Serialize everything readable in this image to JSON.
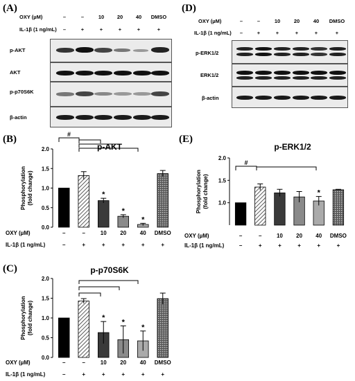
{
  "panels": {
    "A": "(A)",
    "B": "(B)",
    "C": "(C)",
    "D": "(D)",
    "E": "(E)"
  },
  "blots": {
    "A": {
      "row1_label": "OXY (µM)",
      "row2_label": "IL-1β (1 ng/mL)",
      "oxy": [
        "–",
        "–",
        "10",
        "20",
        "40",
        "DMSO"
      ],
      "il": [
        "–",
        "+",
        "+",
        "+",
        "+",
        "+"
      ],
      "bands": [
        "p-AKT",
        "AKT",
        "p-p70S6K",
        "β-actin"
      ]
    },
    "D": {
      "row1_label": "OXY (µM)",
      "row2_label": "IL-1β (1 ng/mL)",
      "oxy": [
        "–",
        "–",
        "10",
        "20",
        "40",
        "DMSO"
      ],
      "il": [
        "–",
        "+",
        "+",
        "+",
        "+",
        "+"
      ],
      "bands": [
        "p-ERK1/2",
        "ERK1/2",
        "β-actin"
      ]
    }
  },
  "chart_data": [
    {
      "id": "B",
      "type": "bar",
      "title": "p-AKT",
      "ylabel": "Phosphorylation\n(fold change)",
      "ylim": [
        0,
        2.0
      ],
      "yticks": [
        "0.0",
        "0.5",
        "1.0",
        "1.5",
        "2.0"
      ],
      "categories": [
        "",
        "",
        "10",
        "20",
        "40",
        "DMSO"
      ],
      "values": [
        1.0,
        1.32,
        0.68,
        0.28,
        0.07,
        1.37
      ],
      "errors": [
        0.0,
        0.1,
        0.06,
        0.04,
        0.03,
        0.08
      ],
      "markers": [
        "",
        "#",
        "*",
        "*",
        "*",
        ""
      ],
      "fills": [
        "black",
        "hatch",
        "#3a3a3a",
        "#8a8a8a",
        "#aaaaaa",
        "crosshatch"
      ],
      "row1_label": "OXY (µM)",
      "row2_label": "IL-1β (1 ng/mL)",
      "oxy": [
        "–",
        "–",
        "10",
        "20",
        "40",
        "DMSO"
      ],
      "il": [
        "–",
        "+",
        "+",
        "+",
        "+",
        "+"
      ]
    },
    {
      "id": "C",
      "type": "bar",
      "title": "p-p70S6K",
      "ylabel": "Phosphorylation\n(fold change)",
      "ylim": [
        0,
        2.0
      ],
      "yticks": [
        "0.0",
        "0.5",
        "1.0",
        "1.5",
        "2.0"
      ],
      "categories": [
        "",
        "",
        "10",
        "20",
        "40",
        "DMSO"
      ],
      "values": [
        1.0,
        1.43,
        0.63,
        0.45,
        0.42,
        1.49
      ],
      "errors": [
        0.0,
        0.06,
        0.28,
        0.35,
        0.25,
        0.14
      ],
      "markers": [
        "",
        "",
        "*",
        "*",
        "*",
        ""
      ],
      "fills": [
        "black",
        "hatch",
        "#3a3a3a",
        "#8a8a8a",
        "#aaaaaa",
        "crosshatch"
      ],
      "row1_label": "OXY (µM)",
      "row2_label": "IL-1β (1 ng/mL)",
      "oxy": [
        "–",
        "–",
        "10",
        "20",
        "40",
        "DMSO"
      ],
      "il": [
        "–",
        "+",
        "+",
        "+",
        "+",
        "+"
      ]
    },
    {
      "id": "E",
      "type": "bar",
      "title": "p-ERK1/2",
      "ylabel": "Phosphorylation\n(fold change)",
      "ylim": [
        0.5,
        2.0
      ],
      "yticks": [
        "1.0",
        "1.5",
        "2.0"
      ],
      "categories": [
        "",
        "",
        "10",
        "20",
        "40",
        "DMSO"
      ],
      "values": [
        1.0,
        1.35,
        1.22,
        1.13,
        1.04,
        1.29
      ],
      "errors": [
        0.0,
        0.07,
        0.08,
        0.12,
        0.1,
        0.01
      ],
      "markers": [
        "",
        "#",
        "",
        "",
        "*",
        ""
      ],
      "fills": [
        "black",
        "hatch",
        "#3a3a3a",
        "#8a8a8a",
        "#aaaaaa",
        "crosshatch"
      ],
      "row1_label": "OXY (µM)",
      "row2_label": "IL-1β (1 ng/mL)",
      "oxy": [
        "–",
        "–",
        "10",
        "20",
        "40",
        "DMSO"
      ],
      "il": [
        "–",
        "+",
        "+",
        "+",
        "+",
        "+"
      ]
    }
  ]
}
